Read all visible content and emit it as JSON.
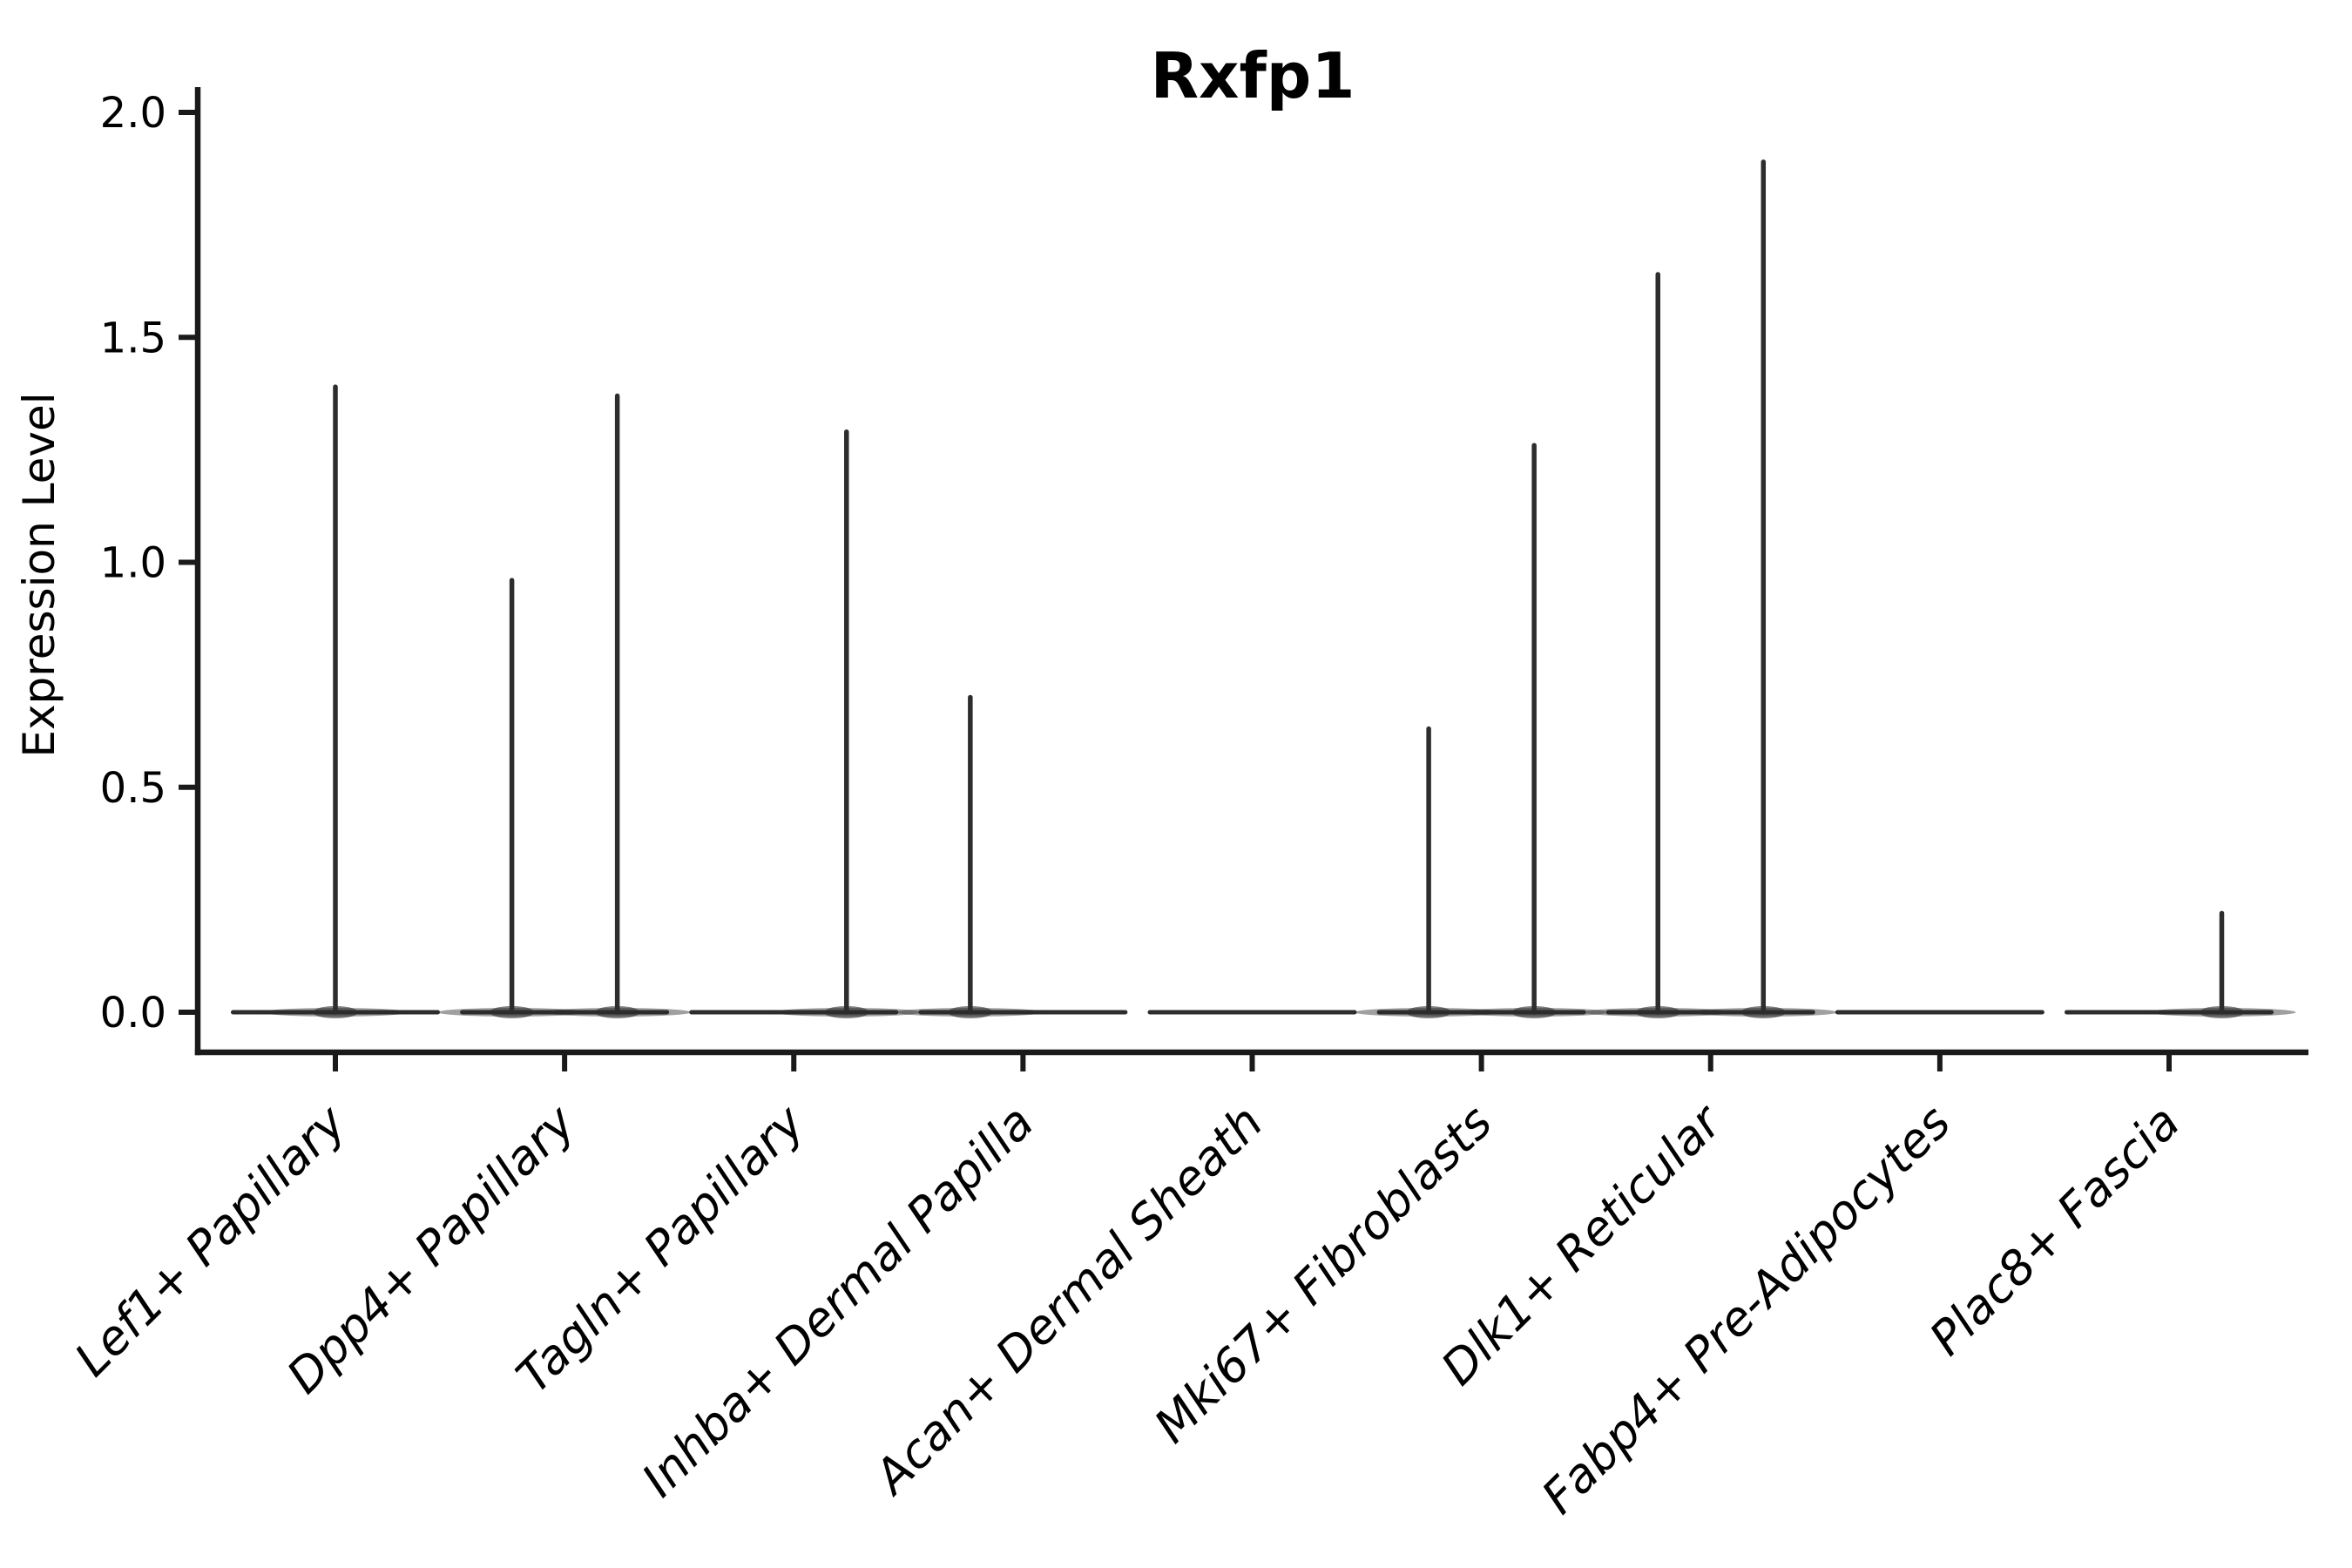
{
  "figure": {
    "background": "#ffffff",
    "text_color": "#000000",
    "axis_line_color": "#1a1a1a",
    "violin_color": "#2d2d2d"
  },
  "chart_data": {
    "type": "violin",
    "title": "Rxfp1",
    "ylabel": "Expression Level",
    "xlabel": "",
    "ylim": [
      0.0,
      2.0
    ],
    "ytick_values": [
      0.0,
      0.5,
      1.0,
      1.5,
      2.0
    ],
    "ytick_labels": [
      "0.0",
      "0.5",
      "1.0",
      "1.5",
      "2.0"
    ],
    "grid": false,
    "legend": "none",
    "x_tick_label_style": "italic, rotated 45deg, anchored at tick",
    "categories": [
      "Lef1+ Papillary",
      "Dpp4+ Papillary",
      "Tagln+ Papillary",
      "Inhba+ Dermal Papilla",
      "Acan+ Dermal Sheath",
      "Mki67+ Fibroblasts",
      "Dlk1+ Reticular",
      "Fabp4+ Pre-Adipocytes",
      "Plac8+ Fascia"
    ],
    "violins": [
      {
        "category": "Lef1+ Papillary",
        "baseline_value": 0.0,
        "spikes": [
          {
            "x_offset": 0.0,
            "max_expression": 1.39
          }
        ]
      },
      {
        "category": "Dpp4+ Papillary",
        "baseline_value": 0.0,
        "spikes": [
          {
            "x_offset": -0.23,
            "max_expression": 0.96
          },
          {
            "x_offset": 0.23,
            "max_expression": 1.37
          }
        ]
      },
      {
        "category": "Tagln+ Papillary",
        "baseline_value": 0.0,
        "spikes": [
          {
            "x_offset": 0.23,
            "max_expression": 1.29
          }
        ]
      },
      {
        "category": "Inhba+ Dermal Papilla",
        "baseline_value": 0.0,
        "spikes": [
          {
            "x_offset": -0.23,
            "max_expression": 0.7
          }
        ]
      },
      {
        "category": "Acan+ Dermal Sheath",
        "baseline_value": 0.0,
        "spikes": []
      },
      {
        "category": "Mki67+ Fibroblasts",
        "baseline_value": 0.0,
        "spikes": [
          {
            "x_offset": -0.23,
            "max_expression": 0.63
          },
          {
            "x_offset": 0.23,
            "max_expression": 1.26
          }
        ]
      },
      {
        "category": "Dlk1+ Reticular",
        "baseline_value": 0.0,
        "spikes": [
          {
            "x_offset": -0.23,
            "max_expression": 1.64
          },
          {
            "x_offset": 0.23,
            "max_expression": 1.89
          }
        ]
      },
      {
        "category": "Fabp4+ Pre-Adipocytes",
        "baseline_value": 0.0,
        "spikes": []
      },
      {
        "category": "Plac8+ Fascia",
        "baseline_value": 0.0,
        "spikes": [
          {
            "x_offset": 0.23,
            "max_expression": 0.22
          }
        ]
      }
    ]
  }
}
